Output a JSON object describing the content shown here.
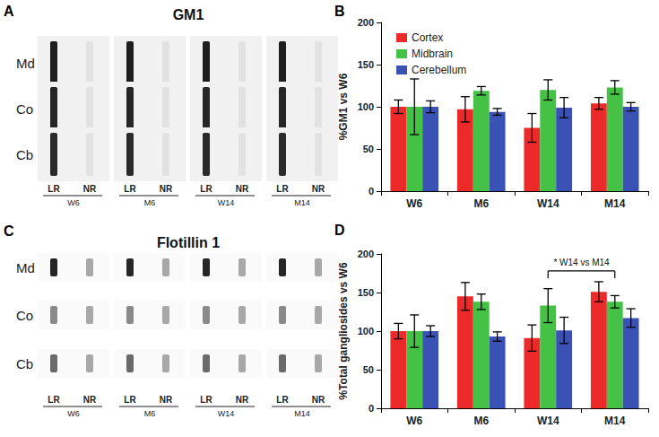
{
  "panels": [
    {
      "label": "A",
      "title": "GM1",
      "rows": [
        "Md",
        "Co",
        "Cb"
      ],
      "lanes": [
        "LR",
        "NR"
      ],
      "groups": [
        "W6",
        "M6",
        "W14",
        "M14"
      ]
    },
    {
      "label": "C",
      "title": "Flotillin 1",
      "rows": [
        "Md",
        "Co",
        "Cb"
      ],
      "lanes": [
        "LR",
        "NR"
      ],
      "groups": [
        "W6",
        "M6",
        "W14",
        "M14"
      ]
    }
  ],
  "chart_data": [
    {
      "panel": "B",
      "type": "bar",
      "y_label": "%GM1 vs W6",
      "categories": [
        "W6",
        "M6",
        "W14",
        "M14"
      ],
      "ylim": [
        0,
        200
      ],
      "yticks": [
        0,
        50,
        100,
        150,
        200
      ],
      "grid": false,
      "legend": "upper left",
      "series": [
        {
          "name": "Cortex",
          "color": "#ec2a2a",
          "values": [
            100,
            97,
            75,
            104
          ],
          "errors": [
            8,
            15,
            17,
            7
          ]
        },
        {
          "name": "Midbrain",
          "color": "#45c245",
          "values": [
            100,
            119,
            120,
            123
          ],
          "errors": [
            33,
            5,
            12,
            8
          ]
        },
        {
          "name": "Cerebellum",
          "color": "#3a52b4",
          "values": [
            100,
            94,
            99,
            100
          ],
          "errors": [
            7,
            4,
            12,
            5
          ]
        }
      ]
    },
    {
      "panel": "D",
      "type": "bar",
      "y_label": "%Total gangliosides vs W6",
      "categories": [
        "W6",
        "M6",
        "W14",
        "M14"
      ],
      "ylim": [
        0,
        200
      ],
      "yticks": [
        0,
        50,
        100,
        150,
        200
      ],
      "grid": false,
      "series": [
        {
          "name": "Cortex",
          "color": "#ec2a2a",
          "values": [
            100,
            145,
            91,
            151
          ],
          "errors": [
            10,
            18,
            17,
            13
          ]
        },
        {
          "name": "Midbrain",
          "color": "#45c245",
          "values": [
            100,
            138,
            133,
            138
          ],
          "errors": [
            21,
            10,
            22,
            8
          ]
        },
        {
          "name": "Cerebellum",
          "color": "#3a52b4",
          "values": [
            100,
            93,
            101,
            117
          ],
          "errors": [
            7,
            6,
            17,
            12
          ]
        }
      ],
      "annotations": [
        {
          "text": "* W14 vs M14",
          "from": "W14",
          "to": "M14",
          "y": 178
        }
      ]
    }
  ]
}
